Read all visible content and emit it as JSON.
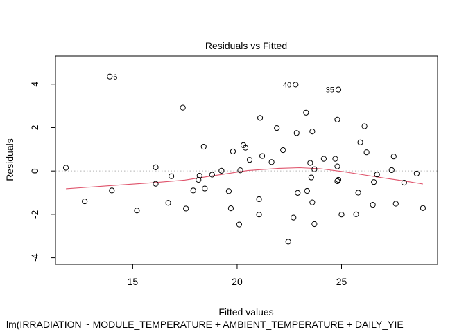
{
  "chart_data": {
    "type": "scatter",
    "title": "Residuals vs Fitted",
    "xlabel": "Fitted values",
    "ylabel": "Residuals",
    "subtitle": "lm(IRRADIATION ~ MODULE_TEMPERATURE + AMBIENT_TEMPERATURE + DAILY_YIE",
    "xlim": [
      11.3,
      29.6
    ],
    "ylim": [
      -4.3,
      5.3
    ],
    "x_ticks": [
      15,
      20,
      25
    ],
    "y_ticks": [
      -4,
      -2,
      0,
      2,
      4
    ],
    "grid": false,
    "reference_line": {
      "y": 0,
      "color": "#b3b3b3",
      "style": "dotted"
    },
    "points": [
      {
        "x": 11.8,
        "y": 0.15
      },
      {
        "x": 12.7,
        "y": -1.4
      },
      {
        "x": 13.9,
        "y": 4.35,
        "label": "6"
      },
      {
        "x": 14.0,
        "y": -0.9
      },
      {
        "x": 15.2,
        "y": -1.82
      },
      {
        "x": 16.1,
        "y": 0.17
      },
      {
        "x": 16.1,
        "y": -0.59
      },
      {
        "x": 16.7,
        "y": -1.47
      },
      {
        "x": 16.85,
        "y": -0.24
      },
      {
        "x": 17.4,
        "y": 2.92
      },
      {
        "x": 17.55,
        "y": -1.73
      },
      {
        "x": 17.9,
        "y": -0.9
      },
      {
        "x": 18.15,
        "y": -0.41
      },
      {
        "x": 18.2,
        "y": -0.22
      },
      {
        "x": 18.4,
        "y": 1.12
      },
      {
        "x": 18.45,
        "y": -0.81
      },
      {
        "x": 18.8,
        "y": -0.17
      },
      {
        "x": 19.25,
        "y": 0.01
      },
      {
        "x": 19.6,
        "y": -0.93
      },
      {
        "x": 19.7,
        "y": -1.72
      },
      {
        "x": 19.8,
        "y": 0.9
      },
      {
        "x": 20.1,
        "y": -2.47
      },
      {
        "x": 20.15,
        "y": 0.03
      },
      {
        "x": 20.3,
        "y": 1.19
      },
      {
        "x": 20.4,
        "y": 1.07
      },
      {
        "x": 20.6,
        "y": 0.51
      },
      {
        "x": 21.05,
        "y": -1.3
      },
      {
        "x": 21.05,
        "y": -2.01
      },
      {
        "x": 21.1,
        "y": 2.45
      },
      {
        "x": 21.2,
        "y": 0.69
      },
      {
        "x": 21.65,
        "y": 0.41
      },
      {
        "x": 21.9,
        "y": 1.98
      },
      {
        "x": 22.2,
        "y": 0.96
      },
      {
        "x": 22.45,
        "y": -3.26
      },
      {
        "x": 22.7,
        "y": -2.15
      },
      {
        "x": 22.8,
        "y": 3.98,
        "label": "40"
      },
      {
        "x": 22.85,
        "y": 1.75
      },
      {
        "x": 22.9,
        "y": -1.01
      },
      {
        "x": 23.3,
        "y": 2.69
      },
      {
        "x": 23.35,
        "y": -0.92
      },
      {
        "x": 23.5,
        "y": 0.37
      },
      {
        "x": 23.55,
        "y": -0.3
      },
      {
        "x": 23.6,
        "y": 1.82
      },
      {
        "x": 23.6,
        "y": -1.45
      },
      {
        "x": 23.7,
        "y": -2.45
      },
      {
        "x": 23.7,
        "y": 0.08
      },
      {
        "x": 24.15,
        "y": 0.56
      },
      {
        "x": 24.7,
        "y": 0.56
      },
      {
        "x": 24.8,
        "y": -0.47
      },
      {
        "x": 24.8,
        "y": 2.37
      },
      {
        "x": 24.8,
        "y": 0.21
      },
      {
        "x": 24.85,
        "y": -0.41
      },
      {
        "x": 24.85,
        "y": 3.75,
        "label": "35"
      },
      {
        "x": 25.0,
        "y": -2.01
      },
      {
        "x": 25.7,
        "y": -2.0
      },
      {
        "x": 25.8,
        "y": -1.0
      },
      {
        "x": 25.9,
        "y": 1.32
      },
      {
        "x": 26.1,
        "y": 2.06
      },
      {
        "x": 26.2,
        "y": 0.86
      },
      {
        "x": 26.5,
        "y": -1.56
      },
      {
        "x": 26.55,
        "y": -0.51
      },
      {
        "x": 26.7,
        "y": -0.16
      },
      {
        "x": 27.4,
        "y": 0.04
      },
      {
        "x": 27.5,
        "y": 0.67
      },
      {
        "x": 27.6,
        "y": -1.51
      },
      {
        "x": 28.0,
        "y": -0.54
      },
      {
        "x": 28.6,
        "y": -0.12
      },
      {
        "x": 28.9,
        "y": -1.71
      }
    ],
    "smoother": {
      "color": "#df536b",
      "x": [
        11.8,
        13.0,
        14.5,
        16.0,
        17.5,
        19.0,
        20.5,
        22.0,
        23.0,
        24.0,
        25.0,
        26.0,
        27.0,
        28.0,
        28.9
      ],
      "y": [
        -0.82,
        -0.74,
        -0.64,
        -0.54,
        -0.42,
        -0.2,
        0.02,
        0.12,
        0.15,
        0.1,
        -0.02,
        -0.17,
        -0.32,
        -0.46,
        -0.6
      ]
    }
  }
}
